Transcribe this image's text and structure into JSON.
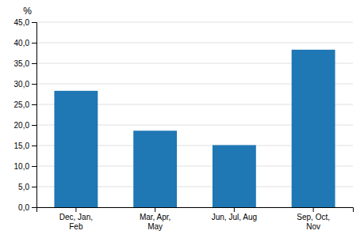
{
  "chart_data": {
    "type": "bar",
    "categories": [
      "Dec, Jan,\nFeb",
      "Mar, Apr,\nMay",
      "Jun, Jul, Aug",
      "Sep, Oct,\nNov"
    ],
    "values": [
      28.3,
      18.6,
      15.1,
      38.3
    ],
    "ylabel": "%",
    "ylim": [
      0,
      45
    ],
    "yticks": [
      {
        "value": 0.0,
        "label": "0,0"
      },
      {
        "value": 5.0,
        "label": "5,0"
      },
      {
        "value": 10.0,
        "label": "10,0"
      },
      {
        "value": 15.0,
        "label": "15,0"
      },
      {
        "value": 20.0,
        "label": "20,0"
      },
      {
        "value": 25.0,
        "label": "25,0"
      },
      {
        "value": 30.0,
        "label": "30,0"
      },
      {
        "value": 35.0,
        "label": "35,0"
      },
      {
        "value": 40.0,
        "label": "40,0"
      },
      {
        "value": 45.0,
        "label": "45,0"
      }
    ],
    "grid": true
  }
}
